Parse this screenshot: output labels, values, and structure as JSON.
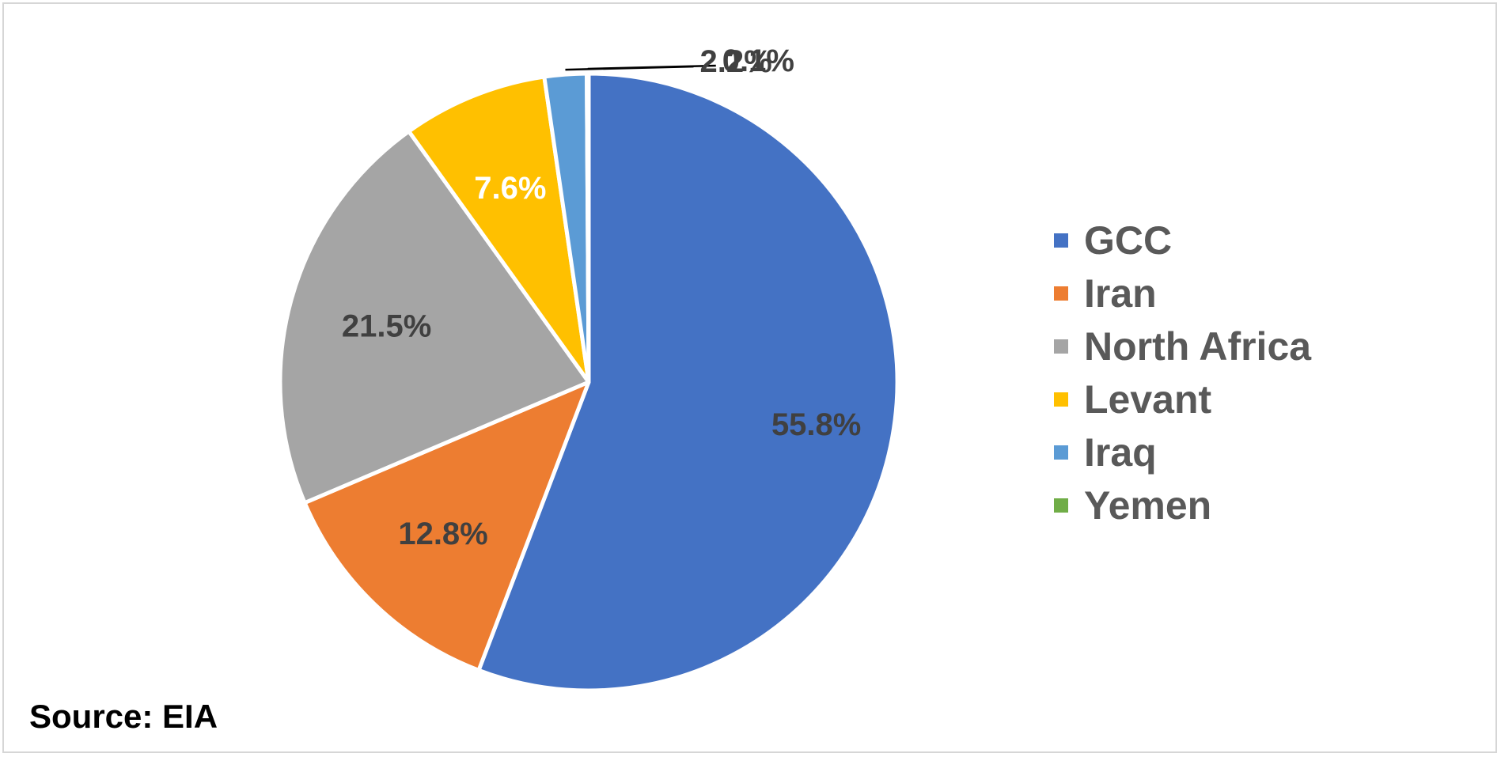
{
  "chart_data": {
    "type": "pie",
    "categories": [
      "GCC",
      "Iran",
      "North Africa",
      "Levant",
      "Iraq",
      "Yemen"
    ],
    "values": [
      55.8,
      12.8,
      21.5,
      7.6,
      2.2,
      0.1
    ],
    "data_labels": [
      "55.8%",
      "12.8%",
      "21.5%",
      "7.6%",
      "2.2%",
      "0.1%"
    ],
    "colors": [
      "#4472C4",
      "#ED7D31",
      "#A5A5A5",
      "#FFC000",
      "#5B9BD5",
      "#70AD47"
    ],
    "label_colors": [
      "#404040",
      "#404040",
      "#404040",
      "#ffffff",
      "#404040",
      "#404040"
    ],
    "legend_position": "right",
    "title": ""
  },
  "footer": {
    "source": "Source: EIA"
  }
}
